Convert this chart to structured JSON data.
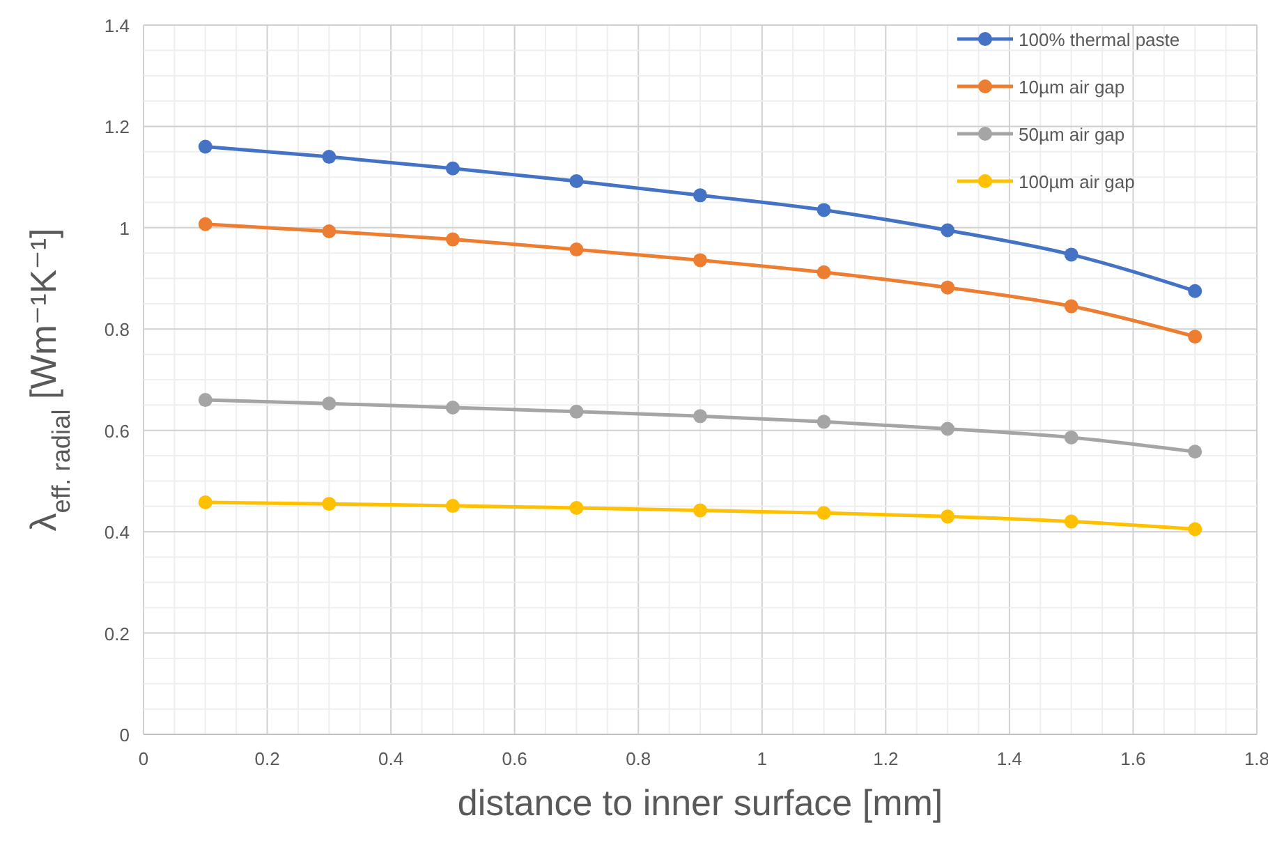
{
  "chart_data": {
    "type": "line",
    "xlabel": "distance to inner surface [mm]",
    "ylabel": "λ$_{eff. radial}$ [Wm⁻¹K⁻¹]",
    "x": [
      0.1,
      0.3,
      0.5,
      0.7,
      0.9,
      1.1,
      1.3,
      1.5,
      1.7
    ],
    "series": [
      {
        "name": "100% thermal paste",
        "color": "#4472c4",
        "values": [
          1.16,
          1.14,
          1.117,
          1.092,
          1.064,
          1.035,
          0.995,
          0.947,
          0.875
        ]
      },
      {
        "name": "10µm air gap",
        "color": "#ed7d31",
        "values": [
          1.007,
          0.993,
          0.977,
          0.957,
          0.936,
          0.912,
          0.882,
          0.845,
          0.785
        ]
      },
      {
        "name": "50µm air gap",
        "color": "#a5a5a5",
        "values": [
          0.66,
          0.653,
          0.645,
          0.637,
          0.628,
          0.617,
          0.603,
          0.586,
          0.558
        ]
      },
      {
        "name": "100µm air gap",
        "color": "#ffc000",
        "values": [
          0.458,
          0.455,
          0.451,
          0.447,
          0.442,
          0.437,
          0.43,
          0.42,
          0.405
        ]
      }
    ],
    "xlim": [
      0,
      1.8
    ],
    "xticks": [
      0,
      {
        "value": 0.05,
        "label": null
      },
      {
        "value": 0.1,
        "label": null
      },
      {
        "value": 0.15,
        "label": null
      },
      0.2,
      {
        "value": 0.25,
        "label": null
      },
      {
        "value": 0.3,
        "label": null
      },
      {
        "value": 0.35,
        "label": null
      },
      0.4,
      {
        "value": 0.45,
        "label": null
      },
      {
        "value": 0.5,
        "label": null
      },
      {
        "value": 0.55,
        "label": null
      },
      0.6,
      {
        "value": 0.65,
        "label": null
      },
      {
        "value": 0.7,
        "label": null
      },
      {
        "value": 0.75,
        "label": null
      },
      0.8,
      {
        "value": 0.85,
        "label": null
      },
      {
        "value": 0.9,
        "label": null
      },
      {
        "value": 0.95,
        "label": null
      },
      1,
      {
        "value": 1.05,
        "label": null
      },
      {
        "value": 1.1,
        "label": null
      },
      {
        "value": 1.15,
        "label": null
      },
      1.2,
      {
        "value": 1.25,
        "label": null
      },
      {
        "value": 1.3,
        "label": null
      },
      {
        "value": 1.35,
        "label": null
      },
      1.4,
      {
        "value": 1.45,
        "label": null
      },
      {
        "value": 1.5,
        "label": null
      },
      {
        "value": 1.55,
        "label": null
      },
      1.6,
      {
        "value": 1.65,
        "label": null
      },
      {
        "value": 1.7,
        "label": null
      },
      {
        "value": 1.75,
        "label": null
      },
      1.8
    ],
    "ylim": [
      0,
      1.4
    ],
    "yticks": [
      0,
      {
        "value": 0.05,
        "label": null
      },
      {
        "value": 0.1,
        "label": null
      },
      {
        "value": 0.15,
        "label": null
      },
      0.2,
      {
        "value": 0.25,
        "label": null
      },
      {
        "value": 0.3,
        "label": null
      },
      {
        "value": 0.35,
        "label": null
      },
      0.4,
      {
        "value": 0.45,
        "label": null
      },
      {
        "value": 0.5,
        "label": null
      },
      {
        "value": 0.55,
        "label": null
      },
      0.6,
      {
        "value": 0.65,
        "label": null
      },
      {
        "value": 0.7,
        "label": null
      },
      {
        "value": 0.75,
        "label": null
      },
      0.8,
      {
        "value": 0.85,
        "label": null
      },
      {
        "value": 0.9,
        "label": null
      },
      {
        "value": 0.95,
        "label": null
      },
      1,
      {
        "value": 1.05,
        "label": null
      },
      {
        "value": 1.1,
        "label": null
      },
      {
        "value": 1.15,
        "label": null
      },
      1.2,
      {
        "value": 1.25,
        "label": null
      },
      {
        "value": 1.3,
        "label": null
      },
      {
        "value": 1.35,
        "label": null
      },
      1.4
    ],
    "grid": true,
    "legend": "top right",
    "marker": "circle",
    "line_style": "solid"
  }
}
